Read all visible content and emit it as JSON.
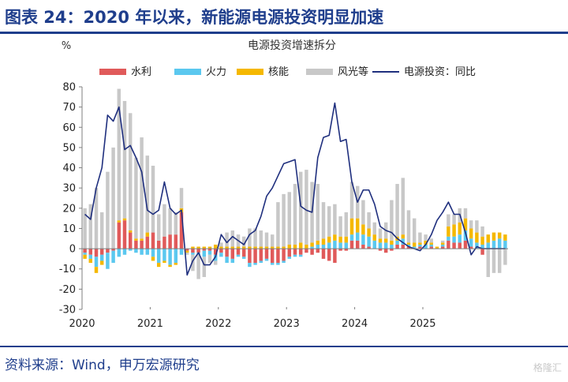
{
  "header": {
    "title": "图表 24：2020 年以来，新能源电源投资明显加速"
  },
  "footer": {
    "source": "资料来源：Wind，申万宏源研究"
  },
  "watermark": {
    "text": "格隆汇"
  },
  "colors": {
    "brand": "#1f3e8c",
    "hydro": "#e05a5a",
    "thermal": "#5bc8ef",
    "nuclear": "#f5b800",
    "windsolar": "#c8c8c8",
    "line": "#1f2f7e"
  },
  "chart_data": {
    "type": "bar",
    "stacked": true,
    "title": "电源投资增速拆分",
    "ylabel": "%",
    "ylim": [
      -30,
      80
    ],
    "yticks": [
      80,
      70,
      60,
      50,
      40,
      30,
      20,
      10,
      0,
      -10,
      -20,
      -30
    ],
    "xtick_labels": [
      "2020",
      "2021",
      "2022",
      "2023",
      "2024",
      "2025"
    ],
    "legend_position": "top",
    "grid": false,
    "series": [
      {
        "name": "水利",
        "type": "bar",
        "color": "#e05a5a",
        "values": [
          -2,
          -3,
          -4,
          -3,
          -2,
          -1,
          13,
          14,
          8,
          4,
          4,
          6,
          8,
          4,
          6,
          7,
          7,
          18,
          -1,
          -2,
          -2,
          -1,
          -1,
          -3,
          -2,
          -4,
          -5,
          -3,
          -4,
          -7,
          -7,
          -6,
          -5,
          -7,
          -7,
          -6,
          -4,
          -3,
          -3,
          -2,
          -3,
          -2,
          -5,
          -6,
          -7,
          -1,
          -1,
          4,
          4,
          2,
          1,
          0,
          -1,
          -2,
          -1,
          2,
          2,
          1,
          0,
          1,
          0,
          1,
          0,
          1,
          4,
          3,
          3,
          4,
          1,
          0,
          -3,
          0,
          0,
          0,
          0
        ]
      },
      {
        "name": "火力",
        "type": "bar",
        "color": "#5bc8ef",
        "values": [
          -1,
          -2,
          -5,
          -3,
          -8,
          -6,
          -4,
          -3,
          -1,
          -2,
          -3,
          -3,
          -4,
          -7,
          -6,
          -8,
          -7,
          -3,
          0,
          -1,
          -1,
          -3,
          -2,
          -3,
          -2,
          -3,
          -2,
          -1,
          -1,
          -2,
          -1,
          -1,
          -1,
          -1,
          -1,
          -1,
          -1,
          -1,
          -1,
          0,
          1,
          2,
          2,
          3,
          4,
          3,
          3,
          3,
          4,
          5,
          5,
          4,
          3,
          3,
          2,
          2,
          3,
          1,
          1,
          1,
          2,
          1,
          0,
          1,
          2,
          3,
          4,
          5,
          4,
          3,
          2,
          3,
          4,
          5,
          4
        ]
      },
      {
        "name": "核能",
        "type": "bar",
        "color": "#f5b800",
        "values": [
          -2,
          -2,
          -3,
          -2,
          0,
          0,
          1,
          1,
          1,
          1,
          1,
          2,
          -2,
          -2,
          -1,
          -1,
          -1,
          2,
          -1,
          1,
          1,
          1,
          1,
          2,
          1,
          1,
          1,
          1,
          1,
          1,
          1,
          1,
          1,
          1,
          1,
          1,
          2,
          2,
          3,
          2,
          2,
          2,
          3,
          3,
          3,
          3,
          3,
          8,
          7,
          5,
          4,
          3,
          2,
          2,
          2,
          2,
          2,
          1,
          2,
          1,
          2,
          1,
          1,
          1,
          5,
          6,
          6,
          6,
          5,
          5,
          4,
          4,
          4,
          3,
          3
        ]
      },
      {
        "name": "风光等",
        "type": "bar",
        "color": "#c8c8c8",
        "values": [
          20,
          22,
          30,
          18,
          38,
          50,
          65,
          58,
          58,
          40,
          50,
          38,
          33,
          13,
          16,
          13,
          11,
          10,
          -1,
          -8,
          -12,
          -10,
          -4,
          -2,
          2,
          7,
          8,
          6,
          5,
          9,
          9,
          8,
          7,
          6,
          22,
          26,
          26,
          30,
          35,
          37,
          30,
          28,
          18,
          15,
          15,
          10,
          12,
          18,
          16,
          12,
          8,
          6,
          5,
          8,
          20,
          26,
          28,
          16,
          12,
          5,
          3,
          2,
          0,
          1,
          6,
          5,
          7,
          5,
          4,
          6,
          5,
          -14,
          -12,
          -12,
          -8
        ]
      },
      {
        "name": "电源投资：同比",
        "type": "line",
        "color": "#1f2f7e",
        "values": [
          17,
          14.5,
          30,
          40,
          66,
          63,
          70,
          49,
          51,
          45,
          38,
          19,
          17,
          19,
          33,
          20,
          17,
          19,
          -13,
          -6,
          -2,
          -8,
          -8,
          -4,
          7,
          3,
          6,
          4,
          2,
          7,
          9,
          16,
          26,
          30,
          36,
          42,
          43,
          44,
          21,
          19,
          18,
          45,
          55,
          56,
          72,
          53,
          54,
          33,
          23,
          29,
          29,
          22,
          11,
          9,
          8,
          5,
          3,
          1,
          0,
          -1,
          2,
          7,
          14,
          18,
          23,
          17,
          17,
          8,
          -3,
          1,
          0,
          0,
          0,
          0,
          0
        ]
      }
    ]
  }
}
